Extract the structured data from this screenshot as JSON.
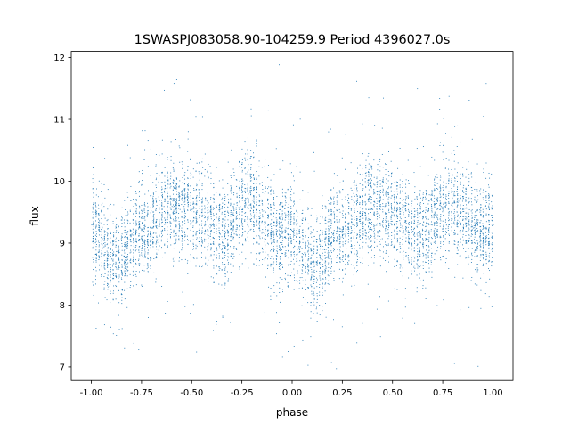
{
  "chart_data": {
    "type": "scatter",
    "title": "1SWASPJ083058.90-104259.9 Period 4396027.0s",
    "xlabel": "phase",
    "ylabel": "flux",
    "xlim": [
      -1.1,
      1.1
    ],
    "ylim": [
      6.78,
      12.1
    ],
    "xticks": [
      "-1.00",
      "-0.75",
      "-0.50",
      "-0.25",
      "0.00",
      "0.25",
      "0.50",
      "0.75",
      "1.00"
    ],
    "yticks": [
      "7",
      "8",
      "9",
      "10",
      "11",
      "12"
    ],
    "grid": false,
    "legend": "none",
    "marker_color": "#1f77b4",
    "series": [
      {
        "values_description_note": "",
        "x": [
          -1.0,
          -0.98,
          -0.96,
          -0.94,
          -0.92,
          -0.9,
          -0.88,
          -0.86,
          -0.84,
          -0.82,
          -0.8,
          -0.78,
          -0.76,
          -0.74,
          -0.72,
          -0.7,
          -0.68,
          -0.66,
          -0.64,
          -0.62,
          -0.6,
          -0.58,
          -0.56,
          -0.54,
          -0.52,
          -0.5,
          -0.48,
          -0.46,
          -0.44,
          -0.42,
          -0.4,
          -0.38,
          -0.36,
          -0.34,
          -0.32,
          -0.3,
          -0.28,
          -0.26,
          -0.24,
          -0.22,
          -0.2,
          -0.18,
          -0.16,
          -0.14,
          -0.12,
          -0.1,
          -0.08,
          -0.06,
          -0.04,
          -0.02,
          0.0,
          0.02,
          0.04,
          0.06,
          0.08,
          0.1,
          0.12,
          0.14,
          0.16,
          0.18,
          0.2,
          0.22,
          0.24,
          0.26,
          0.28,
          0.3,
          0.32,
          0.34,
          0.36,
          0.38,
          0.4,
          0.42,
          0.44,
          0.46,
          0.48,
          0.5,
          0.52,
          0.54,
          0.56,
          0.58,
          0.6,
          0.62,
          0.64,
          0.66,
          0.68,
          0.7,
          0.72,
          0.74,
          0.76,
          0.78,
          0.8,
          0.82,
          0.84,
          0.86,
          0.88,
          0.9,
          0.92,
          0.94,
          0.96,
          0.98,
          1.0
        ],
        "y": [
          9.3,
          9.25,
          9.2,
          9.0,
          8.85,
          8.75,
          8.7,
          8.7,
          8.8,
          9.0,
          9.15,
          9.2,
          9.25,
          9.2,
          9.2,
          9.25,
          9.35,
          9.5,
          9.6,
          9.65,
          9.6,
          9.55,
          9.55,
          9.6,
          9.6,
          9.55,
          9.5,
          9.45,
          9.45,
          9.4,
          9.3,
          9.2,
          9.15,
          9.1,
          9.2,
          9.35,
          9.5,
          9.6,
          9.7,
          9.8,
          9.7,
          9.55,
          9.45,
          9.35,
          9.3,
          9.2,
          9.15,
          9.1,
          9.1,
          9.15,
          9.2,
          9.1,
          8.95,
          8.85,
          8.75,
          8.7,
          8.7,
          8.75,
          8.9,
          9.05,
          9.15,
          9.2,
          9.2,
          9.15,
          9.2,
          9.3,
          9.4,
          9.45,
          9.5,
          9.55,
          9.55,
          9.55,
          9.6,
          9.6,
          9.55,
          9.5,
          9.45,
          9.4,
          9.35,
          9.3,
          9.2,
          9.15,
          9.15,
          9.2,
          9.3,
          9.45,
          9.55,
          9.6,
          9.6,
          9.65,
          9.65,
          9.6,
          9.5,
          9.4,
          9.3,
          9.25,
          9.2,
          9.2,
          9.25,
          9.3,
          9.3
        ]
      }
    ]
  }
}
